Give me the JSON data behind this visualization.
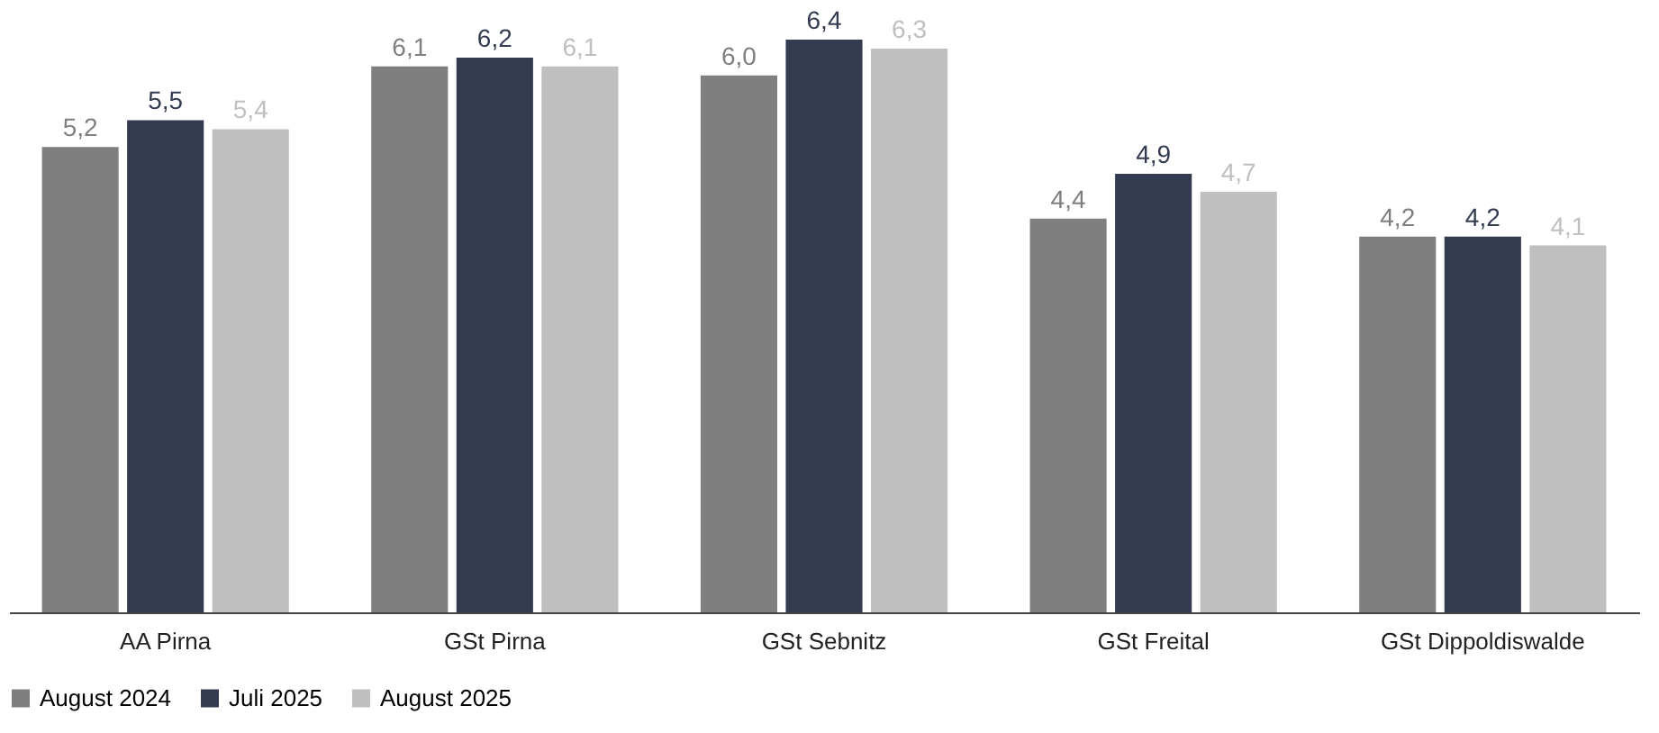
{
  "chart_data": {
    "type": "bar",
    "categories": [
      "AA Pirna",
      "GSt Pirna",
      "GSt Sebnitz",
      "GSt Freital",
      "GSt Dippoldiswalde"
    ],
    "grid": false,
    "legend": "bottom",
    "series": [
      {
        "name": "August 2024",
        "color": "#7f7f7f",
        "values": [
          5.2,
          6.1,
          6.0,
          4.4,
          4.2
        ],
        "value_labels": [
          "5,2",
          "6,1",
          "6,0",
          "4,4",
          "4,2"
        ]
      },
      {
        "name": "Juli 2025",
        "color": "#333b50",
        "values": [
          5.5,
          6.2,
          6.4,
          4.9,
          4.2
        ],
        "value_labels": [
          "5,5",
          "6,2",
          "6,4",
          "4,9",
          "4,2"
        ]
      },
      {
        "name": "August 2025",
        "color": "#bfbfbf",
        "values": [
          5.4,
          6.1,
          6.3,
          4.7,
          4.1
        ],
        "value_labels": [
          "5,4",
          "6,1",
          "6,3",
          "4,7",
          "4,1"
        ]
      }
    ]
  }
}
